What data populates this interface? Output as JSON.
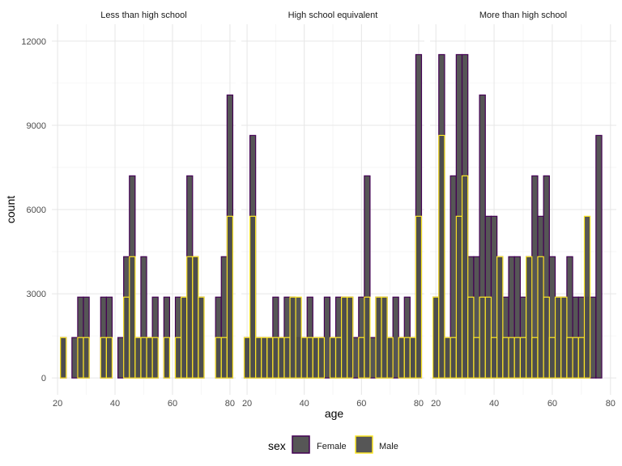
{
  "chart_data": {
    "type": "bar",
    "subtype": "faceted-histogram",
    "xlabel": "age",
    "ylabel": "count",
    "legend": {
      "title": "sex",
      "position": "bottom",
      "entries": [
        {
          "name": "Female",
          "border_color": "#440154"
        },
        {
          "name": "Male",
          "border_color": "#FDE725"
        }
      ]
    },
    "bar_fill": "#4D4D4D",
    "x_ticks": [
      20,
      40,
      60,
      80
    ],
    "y_ticks": [
      0,
      3000,
      6000,
      9000,
      12000
    ],
    "y_tick_labels": [
      "0",
      "3000",
      "6000",
      "9000",
      "12000"
    ],
    "xlim": [
      18,
      82
    ],
    "ylim": [
      -600,
      12600
    ],
    "bins": {
      "start": 20,
      "width": 2,
      "count": 31
    },
    "grid": true,
    "facets": [
      {
        "title": "Less than high school",
        "series": [
          {
            "name": "Female",
            "values": [
              0,
              1440,
              0,
              1440,
              2880,
              2880,
              0,
              0,
              2880,
              2880,
              0,
              1440,
              4320,
              7200,
              1440,
              4320,
              1440,
              2880,
              0,
              2880,
              0,
              2880,
              2880,
              7200,
              4320,
              2880,
              0,
              0,
              2880,
              4320,
              10080
            ]
          },
          {
            "name": "Male",
            "values": [
              0,
              1440,
              0,
              0,
              1440,
              1440,
              0,
              0,
              1440,
              1440,
              0,
              0,
              2880,
              4320,
              1440,
              1440,
              1440,
              1440,
              0,
              1440,
              0,
              1440,
              2880,
              4320,
              4320,
              2880,
              0,
              0,
              1440,
              1440,
              5760
            ]
          }
        ]
      },
      {
        "title": "High school equivalent",
        "series": [
          {
            "name": "Female",
            "values": [
              1440,
              8640,
              1440,
              1440,
              1440,
              2880,
              1440,
              2880,
              2880,
              1440,
              1440,
              2880,
              1440,
              1440,
              2880,
              1440,
              2880,
              2880,
              2880,
              1440,
              2880,
              7200,
              1440,
              2880,
              2880,
              1440,
              2880,
              1440,
              2880,
              1440,
              11520
            ]
          },
          {
            "name": "Male",
            "values": [
              1440,
              5760,
              1440,
              1440,
              1440,
              1440,
              1440,
              1440,
              2880,
              2880,
              1440,
              1440,
              1440,
              1440,
              0,
              1440,
              1440,
              2880,
              2880,
              0,
              1440,
              2880,
              0,
              2880,
              2880,
              1440,
              0,
              1440,
              1440,
              1440,
              5760
            ]
          }
        ]
      },
      {
        "title": "More than high school",
        "series": [
          {
            "name": "Female",
            "values": [
              2880,
              11520,
              1440,
              7200,
              11520,
              11520,
              4320,
              4320,
              10080,
              5760,
              5760,
              4320,
              2880,
              4320,
              4320,
              2880,
              4320,
              7200,
              5760,
              7200,
              4320,
              2880,
              2880,
              4320,
              2880,
              2880,
              2880,
              2880,
              8640,
              0,
              0
            ]
          },
          {
            "name": "Male",
            "values": [
              2880,
              8640,
              1440,
              1440,
              5760,
              7200,
              2880,
              1440,
              2880,
              2880,
              1440,
              4320,
              1440,
              1440,
              1440,
              1440,
              4320,
              1440,
              4320,
              2880,
              1440,
              2880,
              2880,
              1440,
              1440,
              1440,
              5760,
              0,
              0,
              0,
              0
            ]
          }
        ]
      }
    ]
  }
}
